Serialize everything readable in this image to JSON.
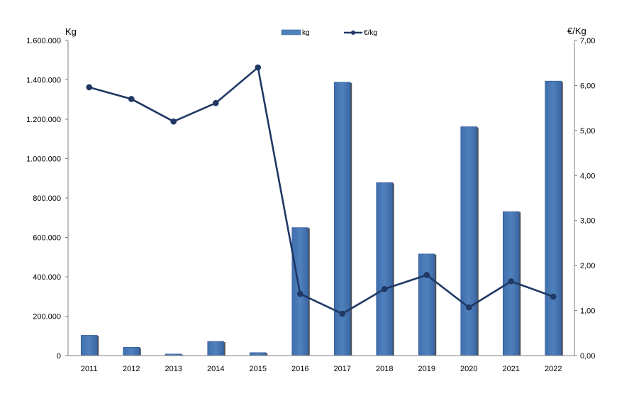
{
  "chart_data": {
    "type": "bar",
    "categories": [
      "2011",
      "2012",
      "2013",
      "2014",
      "2015",
      "2016",
      "2017",
      "2018",
      "2019",
      "2020",
      "2021",
      "2022"
    ],
    "series": [
      {
        "name": "kg",
        "type": "bar",
        "axis": "left",
        "color": "#4F81BD",
        "values": [
          103000,
          42000,
          8000,
          72000,
          15000,
          650000,
          1388000,
          878000,
          516000,
          1162000,
          731000,
          1394000
        ]
      },
      {
        "name": "€/kg",
        "type": "line",
        "axis": "right",
        "color": "#1F3864",
        "values": [
          5.96,
          5.7,
          5.2,
          5.61,
          6.4,
          1.37,
          0.93,
          1.48,
          1.79,
          1.07,
          1.65,
          1.31
        ]
      }
    ],
    "ylabel_left": "Kg",
    "ylabel_right": "€/Kg",
    "ylim_left": [
      0,
      1600000
    ],
    "ylim_right": [
      0,
      7
    ],
    "y_ticks_left": [
      "0",
      "200.000",
      "400.000",
      "600.000",
      "800.000",
      "1.000.000",
      "1.200.000",
      "1.400.000",
      "1.600.000"
    ],
    "y_ticks_right": [
      "0,00",
      "1,00",
      "2,00",
      "3,00",
      "4,00",
      "5,00",
      "6,00",
      "7,00"
    ],
    "legend": {
      "position": "top-center",
      "entries": [
        "kg",
        "€/kg"
      ]
    },
    "grid": false
  }
}
